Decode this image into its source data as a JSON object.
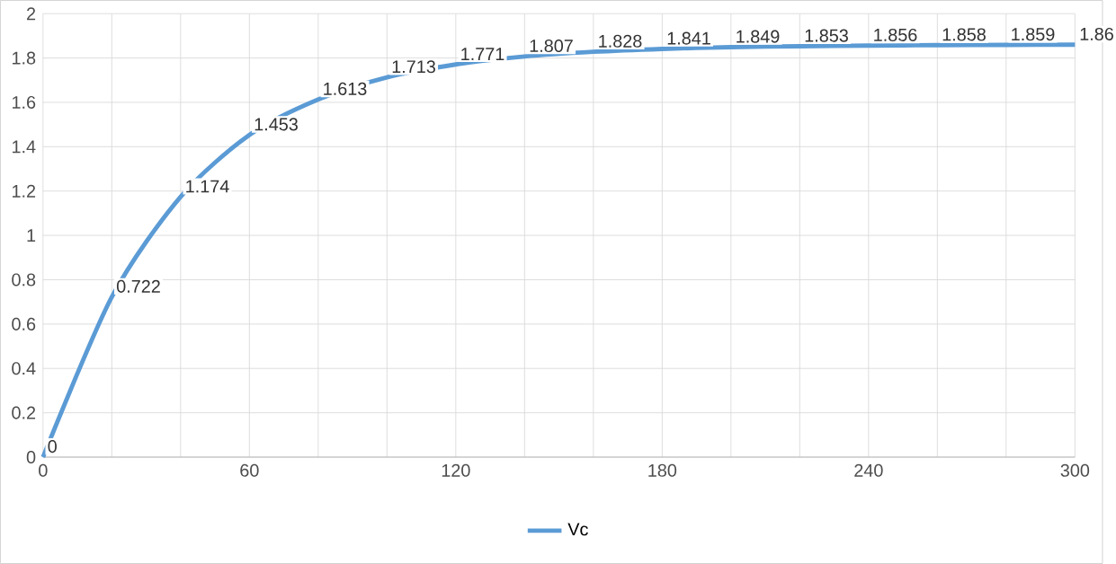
{
  "chart_data": {
    "type": "line",
    "x": [
      0,
      20,
      40,
      60,
      80,
      100,
      120,
      140,
      160,
      180,
      200,
      220,
      240,
      260,
      280,
      300
    ],
    "series": [
      {
        "name": "Vc",
        "color": "#5b9bd5",
        "values": [
          0,
          0.722,
          1.174,
          1.453,
          1.613,
          1.713,
          1.771,
          1.807,
          1.828,
          1.841,
          1.849,
          1.853,
          1.856,
          1.858,
          1.859,
          1.86
        ]
      }
    ],
    "xlim": [
      0,
      300
    ],
    "ylim": [
      0,
      2
    ],
    "xticks": [
      0,
      {
        "value": 20,
        "label": null
      },
      {
        "value": 40,
        "label": null
      },
      60,
      {
        "value": 80,
        "label": null
      },
      {
        "value": 100,
        "label": null
      },
      120,
      {
        "value": 140,
        "label": null
      },
      {
        "value": 160,
        "label": null
      },
      180,
      {
        "value": 200,
        "label": null
      },
      {
        "value": 220,
        "label": null
      },
      240,
      {
        "value": 260,
        "label": null
      },
      {
        "value": 280,
        "label": null
      },
      300
    ],
    "yticks": [
      0,
      0.2,
      0.4,
      0.6,
      0.8,
      1,
      1.2,
      1.4,
      1.6,
      1.8,
      2
    ],
    "grid": true,
    "legend": "bottom",
    "marker": "none",
    "line_style": "solid",
    "data_labels": true
  }
}
